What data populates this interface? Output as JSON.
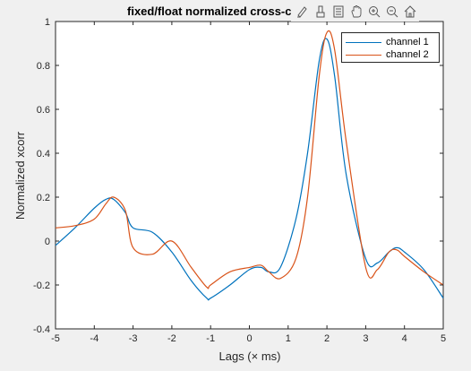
{
  "title": "fixed/float normalized cross-co",
  "toolbar": {
    "icons": [
      "edit-plot-icon",
      "brush-icon",
      "legend-icon",
      "pan-icon",
      "zoom-in-icon",
      "zoom-out-icon",
      "home-icon"
    ]
  },
  "colors": {
    "series1": "#0072bd",
    "series2": "#d95319"
  },
  "chart_data": {
    "type": "line",
    "title": "fixed/float normalized cross-co",
    "xlabel": "Lags (× ms)",
    "ylabel": "Normalized xcorr",
    "xlim": [
      -5,
      5
    ],
    "ylim": [
      -0.4,
      1
    ],
    "xticks": [
      "-5",
      "-4",
      "-3",
      "-2",
      "-1",
      "0",
      "1",
      "2",
      "3",
      "4",
      "5"
    ],
    "yticks": [
      "-0.4",
      "-0.2",
      "0",
      "0.2",
      "0.4",
      "0.6",
      "0.8",
      "1"
    ],
    "grid": false,
    "legend_position": "top-right",
    "x": [
      -5,
      -4.5,
      -4,
      -3.7,
      -3.5,
      -3.2,
      -3,
      -2.5,
      -2,
      -1.5,
      -1.1,
      -1,
      -0.5,
      0,
      0.3,
      0.5,
      0.8,
      1.2,
      1.5,
      1.8,
      2,
      2.2,
      2.5,
      3,
      3.3,
      3.6,
      3.8,
      4,
      4.5,
      5
    ],
    "series": [
      {
        "name": "channel 1",
        "values": [
          -0.02,
          0.06,
          0.15,
          0.19,
          0.19,
          0.13,
          0.06,
          0.04,
          -0.05,
          -0.18,
          -0.26,
          -0.26,
          -0.2,
          -0.13,
          -0.12,
          -0.14,
          -0.12,
          0.1,
          0.4,
          0.82,
          0.92,
          0.75,
          0.3,
          -0.08,
          -0.1,
          -0.05,
          -0.03,
          -0.05,
          -0.13,
          -0.26
        ]
      },
      {
        "name": "channel 2",
        "values": [
          0.06,
          0.07,
          0.1,
          0.17,
          0.2,
          0.14,
          -0.03,
          -0.06,
          0.0,
          -0.12,
          -0.21,
          -0.2,
          -0.14,
          -0.12,
          -0.11,
          -0.14,
          -0.17,
          -0.08,
          0.2,
          0.75,
          0.95,
          0.87,
          0.45,
          -0.12,
          -0.13,
          -0.05,
          -0.04,
          -0.07,
          -0.14,
          -0.2
        ]
      }
    ]
  }
}
